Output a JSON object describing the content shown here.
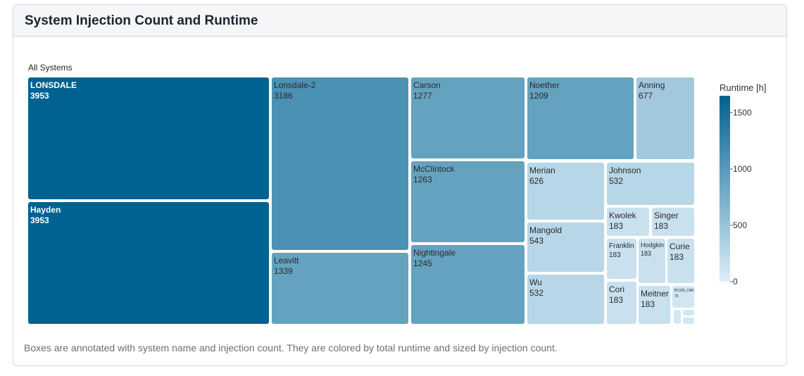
{
  "card": {
    "title": "System Injection Count and Runtime"
  },
  "caption": "Boxes are annotated with system name and injection count. They are colored by total runtime and sized by injection count.",
  "chart_data": {
    "type": "treemap",
    "root_label": "All Systems",
    "size_metric": "injection count",
    "color_metric": "Runtime [h]",
    "colorbar": {
      "title": "Runtime [h]",
      "range": [
        0,
        1650
      ],
      "ticks": [
        0,
        500,
        1000,
        1500
      ],
      "tick_labels": [
        "0",
        "500",
        "1000",
        "1500"
      ],
      "colors": [
        "#ddeef9",
        "#006290"
      ]
    },
    "nodes": [
      {
        "name": "LONSDALE",
        "count": "3953",
        "runtime": 1650
      },
      {
        "name": "Hayden",
        "count": "3953",
        "runtime": 1650
      },
      {
        "name": "Lonsdale-2",
        "count": "3186",
        "runtime": 1100
      },
      {
        "name": "Leavitt",
        "count": "1339",
        "runtime": 900
      },
      {
        "name": "Carson",
        "count": "1277",
        "runtime": 900
      },
      {
        "name": "McClintock",
        "count": "1263",
        "runtime": 900
      },
      {
        "name": "Nightingale",
        "count": "1245",
        "runtime": 900
      },
      {
        "name": "Noether",
        "count": "1209",
        "runtime": 900
      },
      {
        "name": "Anning",
        "count": "677",
        "runtime": 450
      },
      {
        "name": "Merian",
        "count": "626",
        "runtime": 280
      },
      {
        "name": "Johnson",
        "count": "532",
        "runtime": 280
      },
      {
        "name": "Mangold",
        "count": "543",
        "runtime": 280
      },
      {
        "name": "Wu",
        "count": "532",
        "runtime": 280
      },
      {
        "name": "Kwolek",
        "count": "183",
        "runtime": 150
      },
      {
        "name": "Singer",
        "count": "183",
        "runtime": 150
      },
      {
        "name": "Franklin",
        "count": "183",
        "runtime": 150
      },
      {
        "name": "Hodgkin",
        "count": "183",
        "runtime": 150
      },
      {
        "name": "Curie",
        "count": "183",
        "runtime": 150
      },
      {
        "name": "Cori",
        "count": "183",
        "runtime": 150
      },
      {
        "name": "Meitner",
        "count": "183",
        "runtime": 150
      },
      {
        "name": "B1328_CAD",
        "count": "76",
        "runtime": 100
      },
      {
        "name": "",
        "count": "",
        "runtime": 80
      },
      {
        "name": "",
        "count": "",
        "runtime": 80
      },
      {
        "name": "",
        "count": "",
        "runtime": 80
      }
    ]
  }
}
